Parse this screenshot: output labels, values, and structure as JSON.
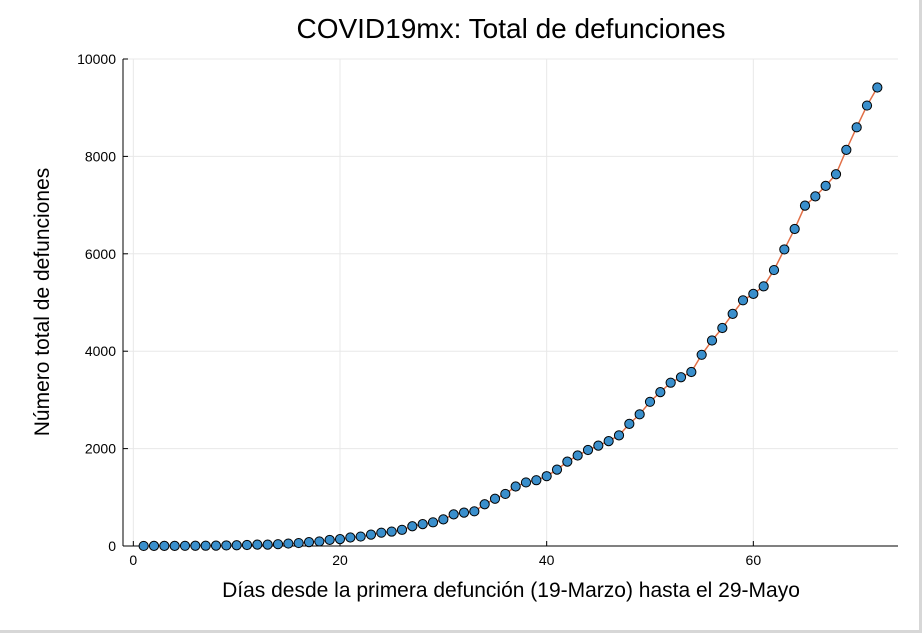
{
  "chart_data": {
    "type": "scatter",
    "title": "COVID19mx: Total de defunciones",
    "xlabel": "Días desde la primera defunción (19-Marzo) hasta el 29-Mayo",
    "ylabel": "Número total de defunciones",
    "xlim": [
      -1,
      74
    ],
    "ylim": [
      0,
      10000
    ],
    "xticks": [
      0,
      20,
      40,
      60
    ],
    "yticks": [
      0,
      2000,
      4000,
      6000,
      8000,
      10000
    ],
    "grid": true,
    "legend": "none",
    "line_color": "#e26f46",
    "marker_color": "#3a8fcc",
    "marker_edge_color": "#000000",
    "x": [
      1,
      2,
      3,
      4,
      5,
      6,
      7,
      8,
      9,
      10,
      11,
      12,
      13,
      14,
      15,
      16,
      17,
      18,
      19,
      20,
      21,
      22,
      23,
      24,
      25,
      26,
      27,
      28,
      29,
      30,
      31,
      32,
      33,
      34,
      35,
      36,
      37,
      38,
      39,
      40,
      41,
      42,
      43,
      44,
      45,
      46,
      47,
      48,
      49,
      50,
      51,
      52,
      53,
      54,
      55,
      56,
      57,
      58,
      59,
      60,
      61,
      62,
      63,
      64,
      65,
      66,
      67,
      68,
      69,
      70,
      71,
      72
    ],
    "y": [
      1,
      2,
      2,
      3,
      4,
      5,
      6,
      8,
      12,
      16,
      20,
      28,
      29,
      37,
      50,
      60,
      79,
      94,
      125,
      141,
      174,
      194,
      233,
      273,
      296,
      332,
      406,
      449,
      486,
      546,
      650,
      686,
      712,
      857,
      970,
      1069,
      1221,
      1305,
      1351,
      1434,
      1569,
      1732,
      1859,
      1972,
      2061,
      2154,
      2271,
      2507,
      2704,
      2961,
      3160,
      3353,
      3465,
      3573,
      3926,
      4220,
      4477,
      4767,
      5045,
      5177,
      5332,
      5666,
      6090,
      6510,
      6989,
      7179,
      7394,
      7633,
      8134,
      8597,
      9044,
      9415
    ]
  }
}
